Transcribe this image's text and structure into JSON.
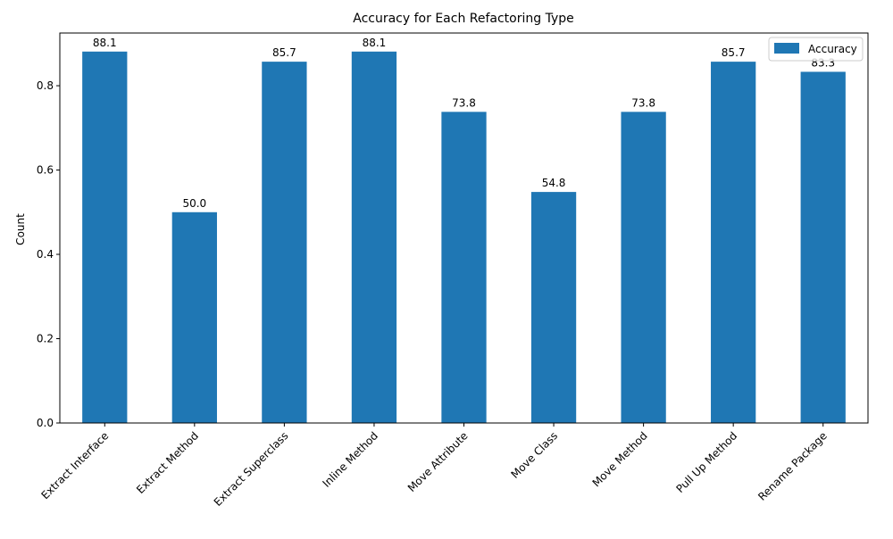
{
  "chart_data": {
    "type": "bar",
    "title": "Accuracy for Each Refactoring Type",
    "xlabel": "",
    "ylabel": "Count",
    "categories": [
      "Extract Interface",
      "Extract Method",
      "Extract Superclass",
      "Inline Method",
      "Move Attribute",
      "Move Class",
      "Move Method",
      "Pull Up Method",
      "Rename Package"
    ],
    "series": [
      {
        "name": "Accuracy",
        "color": "#1f77b4",
        "values": [
          0.881,
          0.5,
          0.857,
          0.881,
          0.738,
          0.548,
          0.738,
          0.857,
          0.833
        ]
      }
    ],
    "data_labels": [
      "88.1",
      "50.0",
      "85.7",
      "88.1",
      "73.8",
      "54.8",
      "73.8",
      "85.7",
      "83.3"
    ],
    "ylim": [
      0,
      0.925
    ],
    "yticks": [
      0.0,
      0.2,
      0.4,
      0.6,
      0.8
    ],
    "ytick_labels": [
      "0.0",
      "0.2",
      "0.4",
      "0.6",
      "0.8"
    ],
    "grid": false,
    "legend_position": "top-right"
  }
}
